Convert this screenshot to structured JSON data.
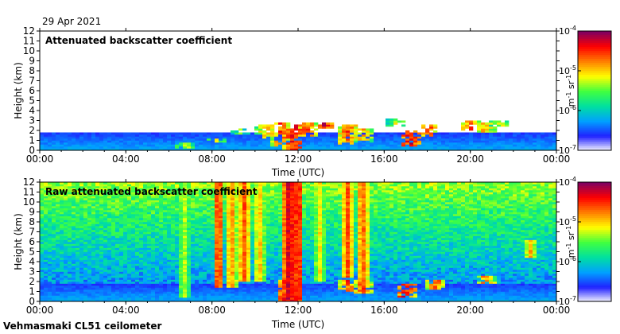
{
  "date": "29 Apr 2021",
  "footer": "Vehmasmaki CL51 ceilometer",
  "chart_data": [
    {
      "type": "heatmap",
      "title": "Attenuated backscatter coefficient",
      "xlabel": "Time (UTC)",
      "ylabel": "Height (km)",
      "ylim": [
        0,
        12
      ],
      "xlim": [
        0,
        24
      ],
      "x_ticks": [
        "00:00",
        "04:00",
        "08:00",
        "12:00",
        "16:00",
        "20:00",
        "00:00"
      ],
      "y_ticks": [
        "0",
        "1",
        "2",
        "3",
        "4",
        "5",
        "6",
        "7",
        "8",
        "9",
        "10",
        "11",
        "12"
      ],
      "colorbar": {
        "min_exp": -7,
        "max_exp": -4,
        "unit": "m-1 sr-1",
        "ticks": [
          "-7",
          "-6",
          "-5",
          "-4"
        ]
      },
      "boundary_layer_top_km": 1.8,
      "cloud_features": [
        {
          "t": 6.8,
          "h0": 0.3,
          "h1": 0.8,
          "level": 0.6
        },
        {
          "t": 8.2,
          "h0": 0.8,
          "h1": 1.2,
          "level": 0.6
        },
        {
          "t": 9.3,
          "h0": 1.6,
          "h1": 2.3,
          "level": 0.5
        },
        {
          "t": 10.5,
          "h0": 1.2,
          "h1": 2.6,
          "level": 0.7
        },
        {
          "t": 11.2,
          "h0": 0.5,
          "h1": 2.7,
          "level": 0.8
        },
        {
          "t": 11.8,
          "h0": 0.0,
          "h1": 2.6,
          "level": 0.9
        },
        {
          "t": 12.4,
          "h0": 1.5,
          "h1": 2.8,
          "level": 0.8
        },
        {
          "t": 13.2,
          "h0": 2.2,
          "h1": 2.8,
          "level": 0.9
        },
        {
          "t": 14.3,
          "h0": 0.6,
          "h1": 2.5,
          "level": 0.8
        },
        {
          "t": 15.0,
          "h0": 0.8,
          "h1": 2.2,
          "level": 0.7
        },
        {
          "t": 16.6,
          "h0": 2.5,
          "h1": 3.2,
          "level": 0.6
        },
        {
          "t": 17.2,
          "h0": 0.5,
          "h1": 2.0,
          "level": 0.9
        },
        {
          "t": 18.1,
          "h0": 1.5,
          "h1": 2.5,
          "level": 0.8
        },
        {
          "t": 20.0,
          "h0": 2.0,
          "h1": 3.0,
          "level": 0.8
        },
        {
          "t": 20.7,
          "h0": 1.8,
          "h1": 2.8,
          "level": 0.7
        },
        {
          "t": 21.4,
          "h0": 2.4,
          "h1": 2.9,
          "level": 0.6
        }
      ]
    },
    {
      "type": "heatmap",
      "title": "Raw attenuated backscatter coefficient",
      "xlabel": "Time (UTC)",
      "ylabel": "Height (km)",
      "ylim": [
        0,
        12
      ],
      "xlim": [
        0,
        24
      ],
      "x_ticks": [
        "00:00",
        "04:00",
        "08:00",
        "12:00",
        "16:00",
        "20:00",
        "00:00"
      ],
      "y_ticks": [
        "0",
        "1",
        "2",
        "3",
        "4",
        "5",
        "6",
        "7",
        "8",
        "9",
        "10",
        "11",
        "12"
      ],
      "colorbar": {
        "min_exp": -7,
        "max_exp": -4,
        "unit": "m-1 sr-1",
        "ticks": [
          "-7",
          "-6",
          "-5",
          "-4"
        ]
      },
      "noise_level_aloft": 0.55,
      "boundary_layer_top_km": 1.8,
      "precip_streaks": [
        {
          "t": 6.7,
          "h0": 0.5,
          "h1": 12,
          "level": 0.6
        },
        {
          "t": 8.3,
          "h0": 1.5,
          "h1": 12,
          "level": 0.85
        },
        {
          "t": 8.9,
          "h0": 1.5,
          "h1": 12,
          "level": 0.75
        },
        {
          "t": 9.5,
          "h0": 2.0,
          "h1": 12,
          "level": 0.8
        },
        {
          "t": 10.2,
          "h0": 2.0,
          "h1": 12,
          "level": 0.7
        },
        {
          "t": 11.6,
          "h0": 0.0,
          "h1": 12,
          "level": 0.95
        },
        {
          "t": 12.0,
          "h0": 0.0,
          "h1": 12,
          "level": 0.9
        },
        {
          "t": 13.0,
          "h0": 2.0,
          "h1": 12,
          "level": 0.65
        },
        {
          "t": 14.3,
          "h0": 2.5,
          "h1": 12,
          "level": 0.8
        },
        {
          "t": 15.0,
          "h0": 1.5,
          "h1": 12,
          "level": 0.8
        },
        {
          "t": 22.8,
          "h0": 4.5,
          "h1": 6.2,
          "level": 0.7
        }
      ],
      "cloud_features": [
        {
          "t": 11.5,
          "h0": 0.0,
          "h1": 2.3,
          "level": 0.9
        },
        {
          "t": 14.3,
          "h0": 1.0,
          "h1": 2.3,
          "level": 0.8
        },
        {
          "t": 15.0,
          "h0": 0.8,
          "h1": 2.2,
          "level": 0.8
        },
        {
          "t": 17.0,
          "h0": 0.5,
          "h1": 1.8,
          "level": 0.9
        },
        {
          "t": 18.4,
          "h0": 1.3,
          "h1": 2.2,
          "level": 0.8
        },
        {
          "t": 20.7,
          "h0": 1.9,
          "h1": 2.6,
          "level": 0.75
        }
      ]
    }
  ],
  "palette": [
    "#ffffff",
    "#2020ff",
    "#00a0ff",
    "#00e0a0",
    "#40ff40",
    "#ffff00",
    "#ff8000",
    "#ff0000",
    "#800060"
  ]
}
